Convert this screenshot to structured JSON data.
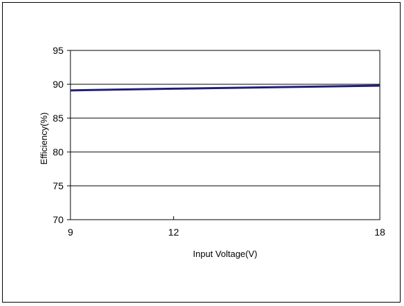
{
  "chart_data": {
    "type": "line",
    "title": "",
    "xlabel": "Input Voltage(V)",
    "ylabel": "Efficiency(%)",
    "xlim": [
      9,
      18
    ],
    "ylim": [
      70,
      95
    ],
    "xticks": [
      9,
      12,
      18
    ],
    "yticks": [
      70,
      75,
      80,
      85,
      90,
      95
    ],
    "grid": "horizontal",
    "legend": "none",
    "series": [
      {
        "x": [
          9,
          12,
          18
        ],
        "y": [
          89.1,
          89.35,
          89.8
        ],
        "color": "#1f1f7a"
      }
    ]
  }
}
